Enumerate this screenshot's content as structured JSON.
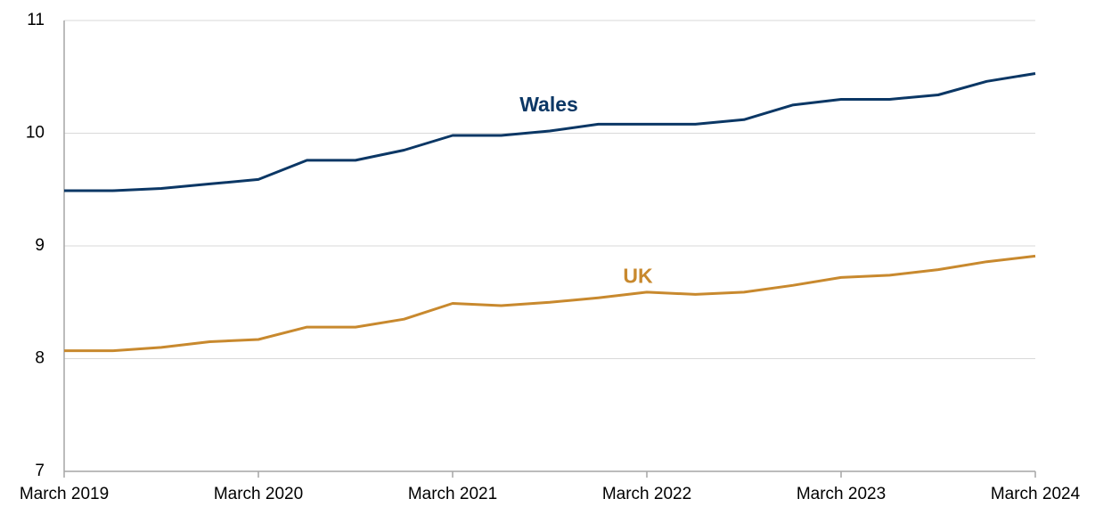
{
  "chart_data": {
    "type": "line",
    "categories": [
      "March 2019",
      null,
      null,
      null,
      "March 2020",
      null,
      null,
      null,
      "March 2021",
      null,
      null,
      null,
      "March 2022",
      null,
      null,
      null,
      "March 2023",
      null,
      null,
      null,
      "March 2024"
    ],
    "series": [
      {
        "name": "Wales",
        "color": "#0b3765",
        "values": [
          9.49,
          9.49,
          9.51,
          9.55,
          9.59,
          9.76,
          9.76,
          9.85,
          9.98,
          9.98,
          10.02,
          10.08,
          10.08,
          10.08,
          10.12,
          10.25,
          10.3,
          10.3,
          10.34,
          10.46,
          10.53
        ]
      },
      {
        "name": "UK",
        "color": "#c8892e",
        "values": [
          8.07,
          8.07,
          8.1,
          8.15,
          8.17,
          8.28,
          8.28,
          8.35,
          8.49,
          8.47,
          8.5,
          8.54,
          8.59,
          8.57,
          8.59,
          8.65,
          8.72,
          8.74,
          8.79,
          8.86,
          8.91
        ]
      }
    ],
    "ylim": [
      7,
      11
    ],
    "yticks": [
      7,
      8,
      9,
      10,
      11
    ],
    "grid": true
  }
}
